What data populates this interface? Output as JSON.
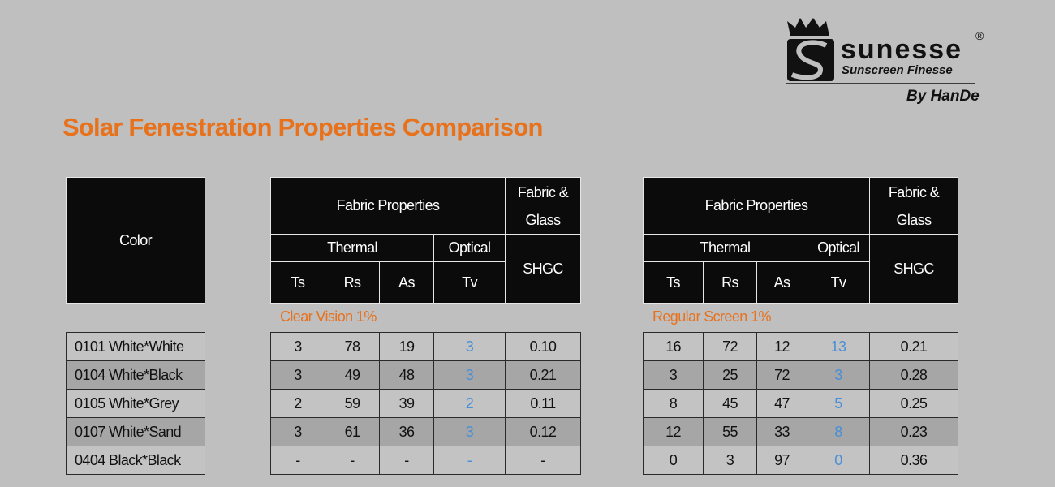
{
  "logo": {
    "brand": "sunesse",
    "registered": "®",
    "tagline": "Sunscreen Finesse",
    "byline": "By HanDe"
  },
  "title": "Solar Fenestration Properties Comparison",
  "color_table": {
    "header": "Color",
    "rows": [
      "0101 White*White",
      "0104 White*Black",
      "0105 White*Grey",
      "0107 White*Sand",
      "0404 Black*Black"
    ]
  },
  "tables": [
    {
      "group_header": "Fabric Properties",
      "combined_header": "Fabric & Glass",
      "thermal": "Thermal",
      "optical": "Optical",
      "columns": [
        "Ts",
        "Rs",
        "As",
        "Tv",
        "SHGC"
      ],
      "section": "Clear Vision 1%",
      "rows": [
        [
          "3",
          "78",
          "19",
          "3",
          "0.10"
        ],
        [
          "3",
          "49",
          "48",
          "3",
          "0.21"
        ],
        [
          "2",
          "59",
          "39",
          "2",
          "0.11"
        ],
        [
          "3",
          "61",
          "36",
          "3",
          "0.12"
        ],
        [
          "-",
          "-",
          "-",
          "-",
          "-"
        ]
      ]
    },
    {
      "group_header": "Fabric Properties",
      "combined_header": "Fabric & Glass",
      "thermal": "Thermal",
      "optical": "Optical",
      "columns": [
        "Ts",
        "Rs",
        "As",
        "Tv",
        "SHGC"
      ],
      "section": "Regular Screen 1%",
      "rows": [
        [
          "16",
          "72",
          "12",
          "13",
          "0.21"
        ],
        [
          "3",
          "25",
          "72",
          "3",
          "0.28"
        ],
        [
          "8",
          "45",
          "47",
          "5",
          "0.25"
        ],
        [
          "12",
          "55",
          "33",
          "8",
          "0.23"
        ],
        [
          "0",
          "3",
          "97",
          "0",
          "0.36"
        ]
      ]
    }
  ]
}
